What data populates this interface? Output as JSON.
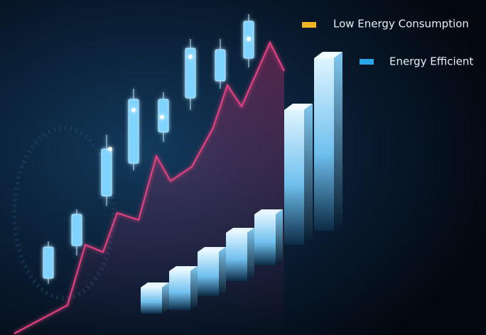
{
  "legend": [
    {
      "label": "Low Energy Consumption"
    },
    {
      "label": "Energy Efficient"
    }
  ]
}
